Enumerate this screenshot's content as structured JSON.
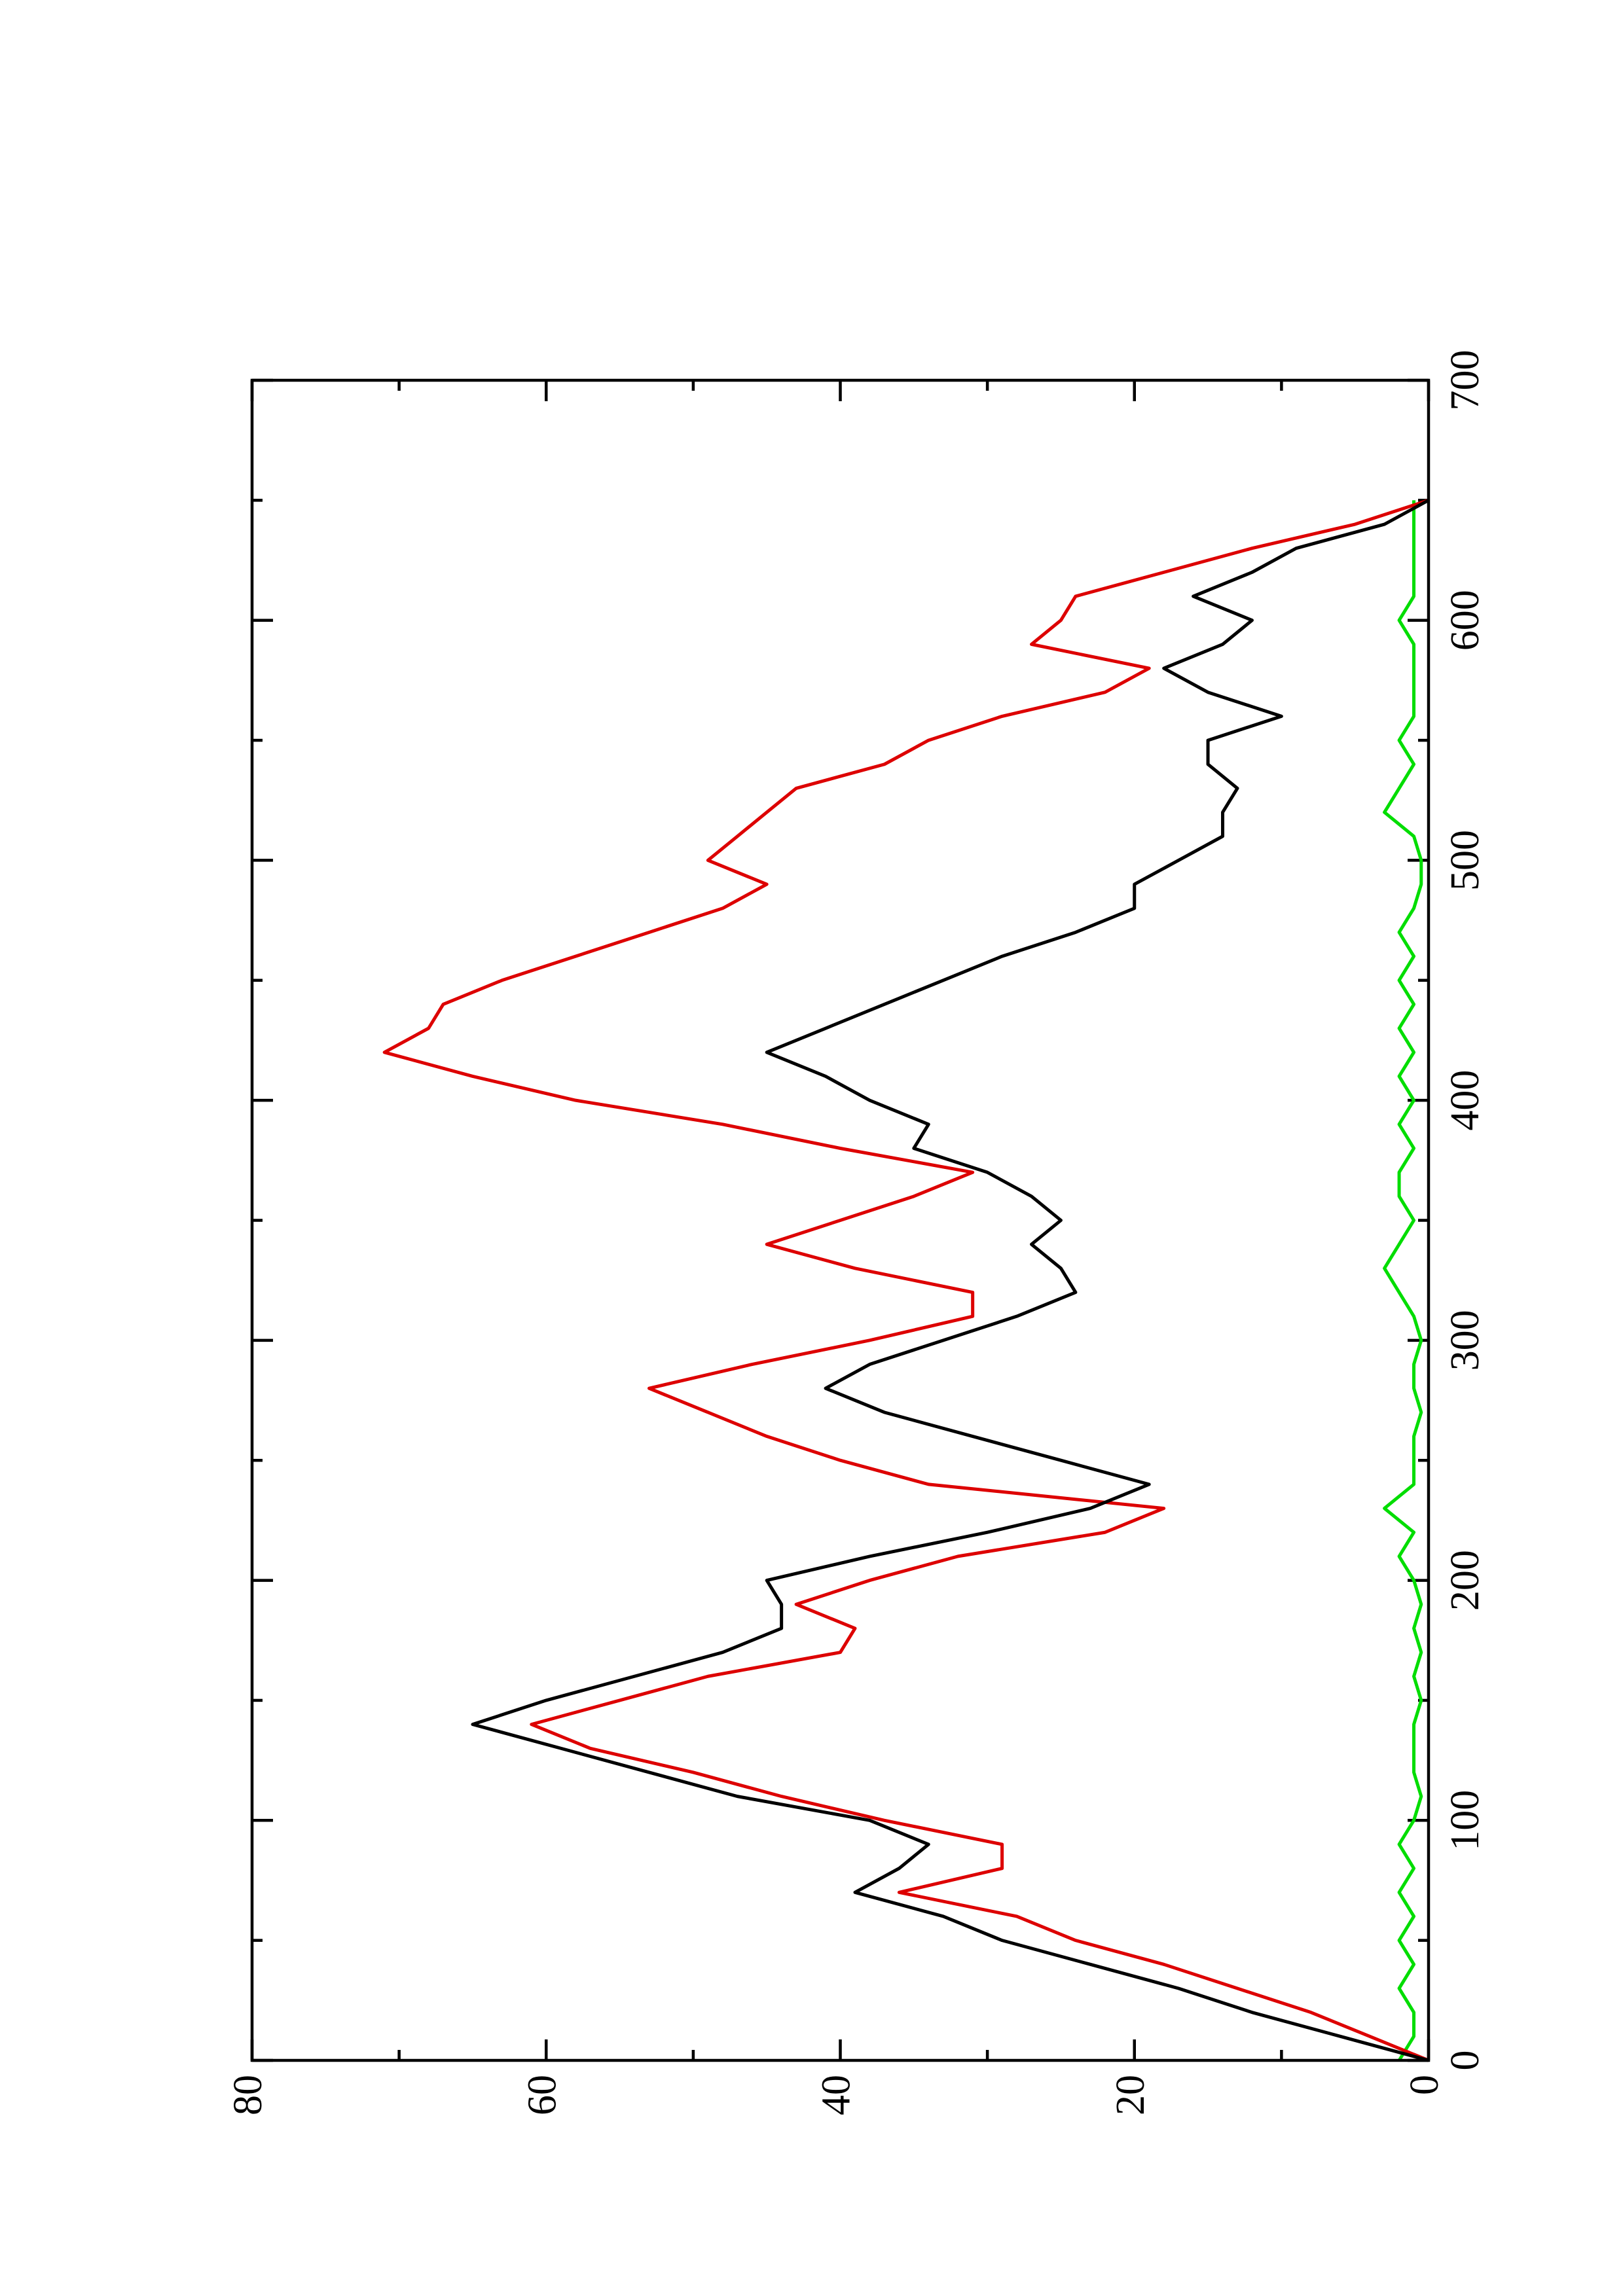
{
  "chart_data": {
    "type": "line",
    "x": [
      0,
      10,
      20,
      30,
      40,
      50,
      60,
      70,
      80,
      90,
      100,
      110,
      120,
      130,
      140,
      150,
      160,
      170,
      180,
      190,
      200,
      210,
      220,
      230,
      240,
      250,
      260,
      270,
      280,
      290,
      300,
      310,
      320,
      330,
      340,
      350,
      360,
      370,
      380,
      390,
      400,
      410,
      420,
      430,
      440,
      450,
      460,
      470,
      480,
      490,
      500,
      510,
      520,
      530,
      540,
      550,
      560,
      570,
      580,
      590,
      600,
      610,
      620,
      630,
      640,
      650
    ],
    "series": [
      {
        "color": "#000000",
        "values": [
          0,
          6,
          12,
          17,
          23,
          29,
          33,
          39,
          36,
          34,
          38,
          47,
          53,
          59,
          65,
          60,
          54,
          48,
          44,
          44,
          45,
          38,
          30,
          23,
          19,
          25,
          31,
          37,
          41,
          38,
          33,
          28,
          24,
          25,
          27,
          25,
          27,
          30,
          35,
          34,
          38,
          41,
          45,
          41,
          37,
          33,
          29,
          24,
          20,
          20,
          17,
          14,
          14,
          13,
          15,
          15,
          10,
          15,
          18,
          14,
          12,
          16,
          12,
          9,
          3,
          0
        ]
      },
      {
        "color": "#dd0000",
        "values": [
          0,
          4,
          8,
          13,
          18,
          24,
          28,
          36,
          29,
          29,
          37,
          44,
          50,
          57,
          61,
          55,
          49,
          40,
          39,
          43,
          38,
          32,
          22,
          18,
          34,
          40,
          45,
          49,
          53,
          46,
          38,
          31,
          31,
          39,
          45,
          40,
          35,
          31,
          40,
          48,
          58,
          65,
          71,
          68,
          67,
          63,
          58,
          53,
          48,
          45,
          49,
          47,
          45,
          43,
          37,
          34,
          29,
          22,
          19,
          27,
          25,
          24,
          18,
          12,
          5,
          0
        ]
      },
      {
        "color": "#00dd00",
        "values": [
          2,
          1,
          1,
          2,
          1,
          2,
          1,
          2,
          1,
          2,
          1,
          0.5,
          1,
          1,
          1,
          0.5,
          1,
          0.5,
          1,
          0.5,
          1,
          2,
          1,
          3,
          1,
          1,
          1,
          0.5,
          1,
          1,
          0.5,
          1,
          2,
          3,
          2,
          1,
          2,
          2,
          1,
          2,
          1,
          2,
          1,
          2,
          1,
          2,
          1,
          2,
          1,
          0.5,
          0.5,
          1,
          3,
          2,
          1,
          2,
          1,
          1,
          1,
          1,
          2,
          1,
          1,
          1,
          1,
          1
        ]
      }
    ],
    "xlim": [
      0,
      700
    ],
    "xticks": [
      0,
      100,
      200,
      300,
      400,
      500,
      600,
      700
    ],
    "xticks_minor": [
      50,
      150,
      250,
      350,
      450,
      550,
      650
    ],
    "ylim": [
      0,
      80
    ],
    "yticks": [
      0,
      20,
      40,
      60,
      80
    ],
    "yticks_minor": [
      10,
      30,
      50,
      70
    ],
    "rotated": true
  }
}
